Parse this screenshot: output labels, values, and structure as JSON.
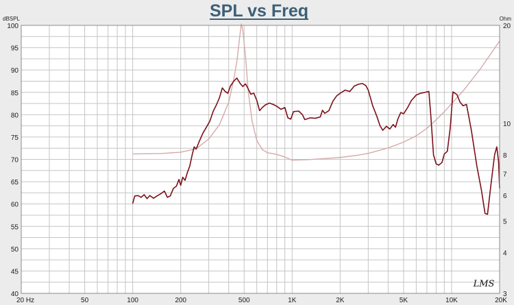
{
  "chart_data": {
    "type": "line",
    "title": "SPL vs Freq",
    "left_unit": "dBSPL",
    "right_unit": "Ohm",
    "logo": "LMS",
    "x_scale": "log",
    "xlim": [
      20,
      20000
    ],
    "ylim_left": [
      40,
      100
    ],
    "ylim_right": [
      3,
      20
    ],
    "grid": true,
    "x_ticks": [
      {
        "value": 20,
        "label": "20 Hz"
      },
      {
        "value": 50,
        "label": "50"
      },
      {
        "value": 100,
        "label": "100"
      },
      {
        "value": 200,
        "label": "200"
      },
      {
        "value": 500,
        "label": "500"
      },
      {
        "value": 1000,
        "label": "1K"
      },
      {
        "value": 2000,
        "label": "2K"
      },
      {
        "value": 5000,
        "label": "5K"
      },
      {
        "value": 10000,
        "label": "10K"
      },
      {
        "value": 20000,
        "label": "20K"
      }
    ],
    "y_ticks_left": [
      "40",
      "45",
      "50",
      "55",
      "60",
      "65",
      "70",
      "75",
      "80",
      "85",
      "90",
      "95",
      "100"
    ],
    "y_ticks_right": [
      {
        "value": 3,
        "label": "3"
      },
      {
        "value": 4,
        "label": "4"
      },
      {
        "value": 5,
        "label": "5"
      },
      {
        "value": 6,
        "label": "6"
      },
      {
        "value": 7,
        "label": "7"
      },
      {
        "value": 8,
        "label": "8"
      },
      {
        "value": 10,
        "label": "10"
      },
      {
        "value": 20,
        "label": "20"
      }
    ],
    "series": [
      {
        "axis": "left",
        "color": "#7a0f18",
        "points": [
          [
            100,
            60.1
          ],
          [
            103,
            61.8
          ],
          [
            108,
            61.9
          ],
          [
            113,
            61.5
          ],
          [
            118,
            62.1
          ],
          [
            123,
            61.2
          ],
          [
            128,
            61.9
          ],
          [
            135,
            61.3
          ],
          [
            142,
            61.8
          ],
          [
            150,
            62.3
          ],
          [
            158,
            62.9
          ],
          [
            165,
            61.5
          ],
          [
            172,
            61.8
          ],
          [
            180,
            63.5
          ],
          [
            188,
            64.0
          ],
          [
            195,
            65.5
          ],
          [
            200,
            64.2
          ],
          [
            206,
            66.0
          ],
          [
            213,
            65.3
          ],
          [
            220,
            67.0
          ],
          [
            228,
            68.5
          ],
          [
            236,
            71.0
          ],
          [
            243,
            72.8
          ],
          [
            250,
            72.3
          ],
          [
            260,
            73.8
          ],
          [
            275,
            75.8
          ],
          [
            290,
            77.2
          ],
          [
            305,
            78.6
          ],
          [
            320,
            80.8
          ],
          [
            335,
            82.2
          ],
          [
            350,
            83.8
          ],
          [
            365,
            86.0
          ],
          [
            380,
            85.2
          ],
          [
            395,
            84.8
          ],
          [
            410,
            86.4
          ],
          [
            430,
            87.5
          ],
          [
            450,
            88.2
          ],
          [
            470,
            87.1
          ],
          [
            490,
            86.3
          ],
          [
            510,
            86.9
          ],
          [
            530,
            85.8
          ],
          [
            550,
            84.6
          ],
          [
            575,
            84.8
          ],
          [
            600,
            83.2
          ],
          [
            625,
            80.9
          ],
          [
            650,
            81.6
          ],
          [
            680,
            82.2
          ],
          [
            720,
            82.6
          ],
          [
            760,
            82.3
          ],
          [
            800,
            81.9
          ],
          [
            850,
            81.2
          ],
          [
            900,
            81.6
          ],
          [
            940,
            79.3
          ],
          [
            980,
            79.0
          ],
          [
            1020,
            80.7
          ],
          [
            1100,
            80.8
          ],
          [
            1160,
            80.0
          ],
          [
            1200,
            78.9
          ],
          [
            1300,
            79.3
          ],
          [
            1400,
            79.2
          ],
          [
            1500,
            79.5
          ],
          [
            1550,
            81.0
          ],
          [
            1600,
            80.3
          ],
          [
            1700,
            80.9
          ],
          [
            1800,
            83.0
          ],
          [
            1900,
            84.2
          ],
          [
            2000,
            84.8
          ],
          [
            2150,
            85.5
          ],
          [
            2300,
            85.2
          ],
          [
            2450,
            86.4
          ],
          [
            2600,
            86.8
          ],
          [
            2750,
            87.0
          ],
          [
            2900,
            86.5
          ],
          [
            3000,
            85.5
          ],
          [
            3200,
            82.0
          ],
          [
            3400,
            79.6
          ],
          [
            3550,
            77.6
          ],
          [
            3700,
            76.5
          ],
          [
            3900,
            77.4
          ],
          [
            4100,
            76.8
          ],
          [
            4300,
            77.8
          ],
          [
            4450,
            77.2
          ],
          [
            4600,
            79.0
          ],
          [
            4800,
            80.5
          ],
          [
            5000,
            80.2
          ],
          [
            5300,
            81.6
          ],
          [
            5600,
            83.2
          ],
          [
            6000,
            84.4
          ],
          [
            6400,
            84.8
          ],
          [
            6800,
            85.0
          ],
          [
            7200,
            85.2
          ],
          [
            7400,
            80.0
          ],
          [
            7700,
            71.0
          ],
          [
            8000,
            69.0
          ],
          [
            8300,
            68.7
          ],
          [
            8700,
            69.3
          ],
          [
            9000,
            71.2
          ],
          [
            9400,
            71.8
          ],
          [
            9800,
            77.0
          ],
          [
            10200,
            85.1
          ],
          [
            10800,
            84.5
          ],
          [
            11300,
            82.8
          ],
          [
            11800,
            82.0
          ],
          [
            12400,
            82.3
          ],
          [
            13300,
            76.5
          ],
          [
            14400,
            68.5
          ],
          [
            15400,
            63.0
          ],
          [
            16200,
            57.9
          ],
          [
            16800,
            57.7
          ],
          [
            17600,
            64.0
          ],
          [
            18600,
            71.0
          ],
          [
            19200,
            72.8
          ],
          [
            19700,
            69.5
          ],
          [
            20000,
            63.5
          ]
        ]
      },
      {
        "axis": "right",
        "color": "#d5a9aa",
        "points": [
          [
            100,
            8.05
          ],
          [
            150,
            8.07
          ],
          [
            200,
            8.15
          ],
          [
            250,
            8.35
          ],
          [
            300,
            8.95
          ],
          [
            350,
            9.9
          ],
          [
            400,
            11.6
          ],
          [
            430,
            13.6
          ],
          [
            450,
            15.5
          ],
          [
            470,
            18.6
          ],
          [
            480,
            20.2
          ],
          [
            490,
            19.4
          ],
          [
            510,
            16.0
          ],
          [
            530,
            12.6
          ],
          [
            560,
            10.2
          ],
          [
            600,
            8.85
          ],
          [
            650,
            8.3
          ],
          [
            700,
            8.12
          ],
          [
            800,
            8.02
          ],
          [
            900,
            7.88
          ],
          [
            1000,
            7.7
          ],
          [
            1200,
            7.72
          ],
          [
            1500,
            7.77
          ],
          [
            2000,
            7.85
          ],
          [
            2500,
            7.96
          ],
          [
            3000,
            8.08
          ],
          [
            4000,
            8.4
          ],
          [
            5000,
            8.75
          ],
          [
            6000,
            9.15
          ],
          [
            7000,
            9.65
          ],
          [
            8000,
            10.25
          ],
          [
            9000,
            10.85
          ],
          [
            10000,
            11.5
          ],
          [
            12000,
            12.7
          ],
          [
            15000,
            14.6
          ],
          [
            18000,
            16.6
          ],
          [
            20000,
            17.9
          ]
        ]
      }
    ]
  }
}
